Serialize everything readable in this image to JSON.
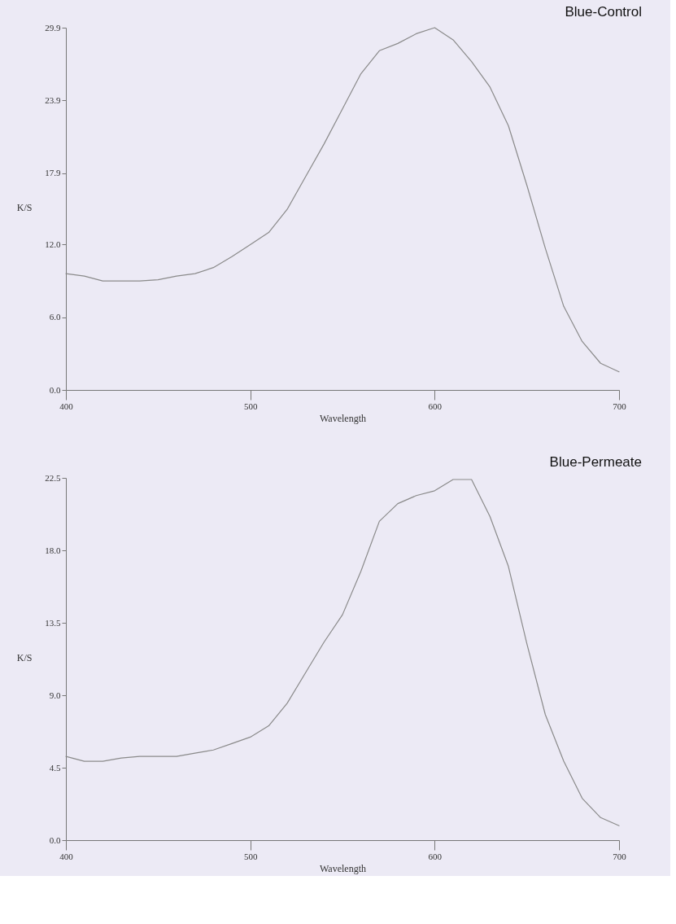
{
  "chart_data": [
    {
      "type": "line",
      "title": "Blue-Control",
      "xlabel": "Wavelength",
      "ylabel": "K/S",
      "x": [
        400,
        410,
        420,
        430,
        440,
        450,
        460,
        470,
        480,
        490,
        500,
        510,
        520,
        530,
        540,
        550,
        560,
        570,
        580,
        590,
        600,
        610,
        620,
        630,
        640,
        650,
        660,
        670,
        680,
        690,
        700
      ],
      "series": [
        {
          "color": "#8a8a8a",
          "values": [
            9.6,
            9.4,
            9.0,
            9.0,
            9.0,
            9.1,
            9.4,
            9.6,
            10.1,
            11.0,
            12.0,
            13.0,
            14.9,
            17.6,
            20.3,
            23.2,
            26.1,
            28.0,
            28.6,
            29.4,
            29.9,
            28.9,
            27.1,
            25.0,
            21.8,
            16.9,
            11.7,
            6.9,
            4.0,
            2.2,
            1.5
          ]
        }
      ],
      "xlim": [
        400,
        700
      ],
      "xticks": [
        400,
        500,
        600,
        700
      ],
      "ylim": [
        0,
        29.9
      ],
      "yticks": [
        {
          "value": 0,
          "label": "0.0"
        },
        {
          "value": 6,
          "label": "6.0"
        },
        {
          "value": 12,
          "label": "12.0"
        },
        17.9,
        23.9,
        29.9
      ],
      "grid": false,
      "legend": false,
      "marker": "none",
      "line_style": "solid"
    },
    {
      "type": "line",
      "title": "Blue-Permeate",
      "xlabel": "Wavelength",
      "ylabel": "K/S",
      "x": [
        400,
        410,
        420,
        430,
        440,
        450,
        460,
        470,
        480,
        490,
        500,
        510,
        520,
        530,
        540,
        550,
        560,
        570,
        580,
        590,
        600,
        610,
        620,
        630,
        640,
        650,
        660,
        670,
        680,
        690,
        700
      ],
      "series": [
        {
          "color": "#8a8a8a",
          "values": [
            5.2,
            4.9,
            4.9,
            5.1,
            5.2,
            5.2,
            5.2,
            5.4,
            5.6,
            6.0,
            6.4,
            7.1,
            8.5,
            10.4,
            12.3,
            14.0,
            16.7,
            19.8,
            20.9,
            21.4,
            21.7,
            22.4,
            22.4,
            20.1,
            17.0,
            12.2,
            7.8,
            4.9,
            2.6,
            1.4,
            0.9
          ]
        }
      ],
      "xlim": [
        400,
        700
      ],
      "xticks": [
        400,
        500,
        600,
        700
      ],
      "ylim": [
        0,
        22.5
      ],
      "yticks": [
        {
          "value": 0,
          "label": "0.0"
        },
        4.5,
        {
          "value": 9,
          "label": "9.0"
        },
        13.5,
        {
          "value": 18,
          "label": "18.0"
        },
        22.5
      ],
      "grid": false,
      "legend": false,
      "marker": "none",
      "line_style": "solid"
    }
  ]
}
